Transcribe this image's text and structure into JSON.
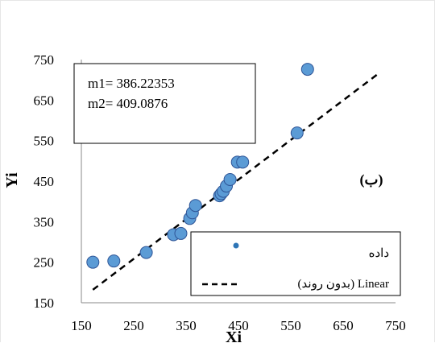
{
  "chart_data": {
    "type": "scatter",
    "xlabel": "Xi",
    "ylabel": "Yi",
    "xlim": [
      150,
      750
    ],
    "ylim": [
      150,
      750
    ],
    "xticks": [
      150,
      250,
      350,
      450,
      550,
      650,
      750
    ],
    "yticks": [
      150,
      250,
      350,
      450,
      550,
      650,
      750
    ],
    "grid": false,
    "panel_label": "(ب)",
    "params": [
      "m1= 386.22353",
      "m2= 409.0876"
    ],
    "marker_color": "#5b9bd5",
    "marker_edge_color": "#2f5597",
    "series": [
      {
        "name": "داده",
        "x": [
          172,
          212,
          274,
          326,
          340,
          357,
          362,
          368,
          414,
          417,
          421,
          427,
          434,
          448,
          458,
          562,
          582
        ],
        "y": [
          250,
          253,
          274,
          318,
          321,
          358,
          372,
          390,
          414,
          419,
          425,
          438,
          454,
          497,
          497,
          569,
          726
        ]
      },
      {
        "name": "(بدون روند)  Linear",
        "type": "line",
        "style": "dashed",
        "x": [
          172,
          720
        ],
        "y": [
          182,
          718
        ]
      }
    ]
  }
}
